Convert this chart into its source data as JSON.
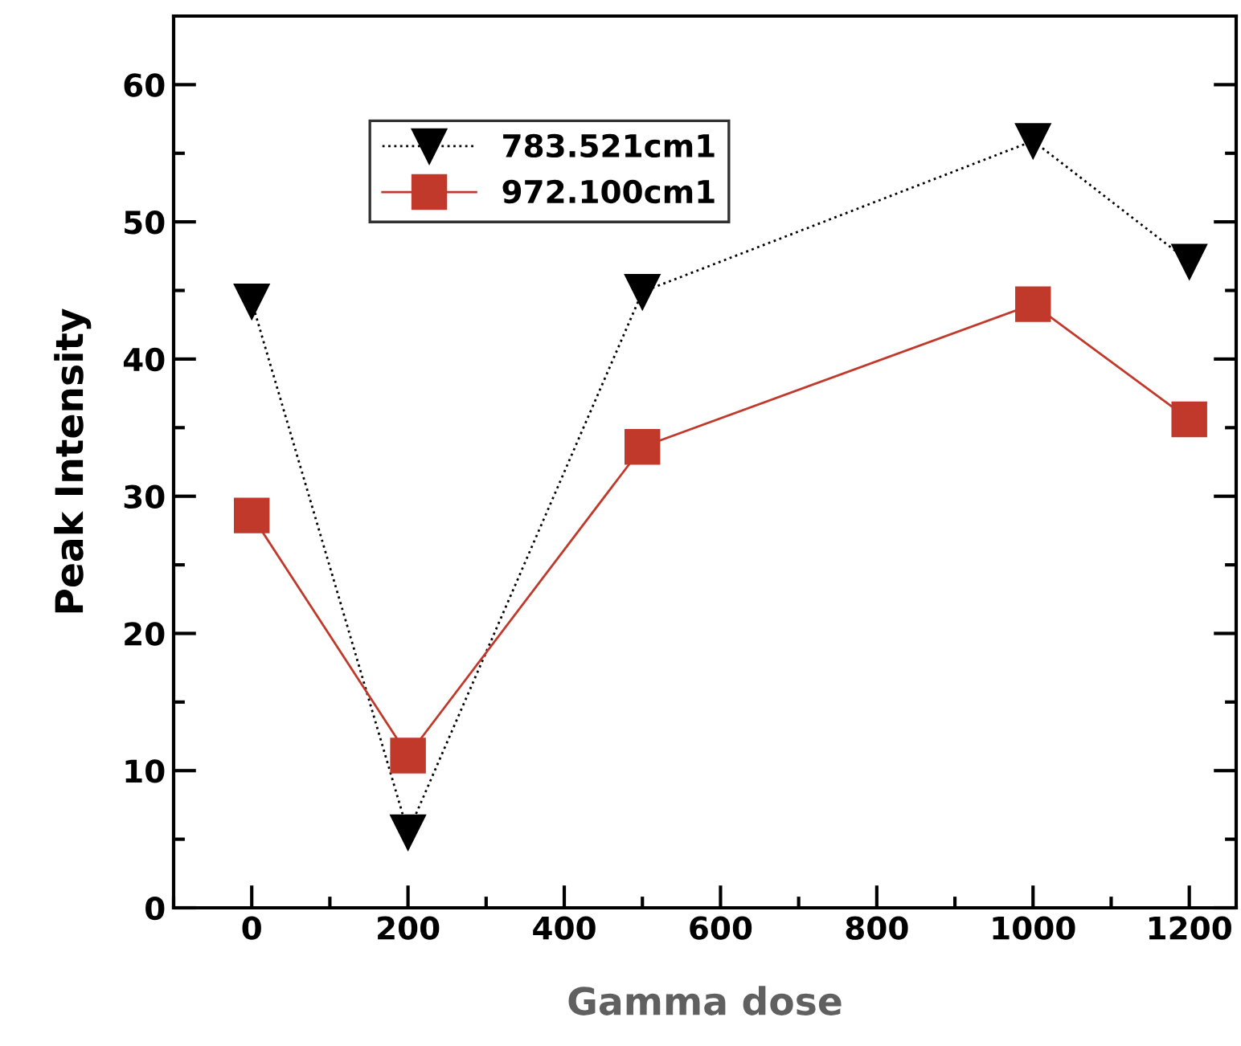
{
  "chart_data": {
    "type": "line",
    "xlabel": "Gamma dose",
    "ylabel": "Peak Intensity",
    "x": [
      0,
      200,
      500,
      1000,
      1200
    ],
    "series": [
      {
        "name": "783.521cm1",
        "color": "#000000",
        "line_style": "dotted",
        "marker": "triangle_down",
        "values": [
          44.2,
          5.5,
          44.9,
          55.9,
          47.1
        ]
      },
      {
        "name": "972.100cm1",
        "color": "#c0392b",
        "line_style": "solid",
        "marker": "square",
        "values": [
          28.6,
          11.1,
          33.6,
          44.0,
          35.6
        ]
      }
    ],
    "xlim": [
      -100,
      1260
    ],
    "ylim": [
      0,
      65
    ],
    "xticks": [
      {
        "value": -100,
        "label": null
      },
      0,
      {
        "value": 100,
        "label": null
      },
      200,
      {
        "value": 300,
        "label": null
      },
      400,
      {
        "value": 500,
        "label": null
      },
      600,
      {
        "value": 700,
        "label": null
      },
      800,
      {
        "value": 900,
        "label": null
      },
      1000,
      {
        "value": 1100,
        "label": null
      },
      1200
    ],
    "yticks": [
      0,
      {
        "value": 5,
        "label": null
      },
      10,
      {
        "value": 15,
        "label": null
      },
      20,
      {
        "value": 25,
        "label": null
      },
      30,
      {
        "value": 35,
        "label": null
      },
      40,
      {
        "value": 45,
        "label": null
      },
      50,
      {
        "value": 55,
        "label": null
      },
      60
    ],
    "grid": false,
    "legend": "top left"
  }
}
